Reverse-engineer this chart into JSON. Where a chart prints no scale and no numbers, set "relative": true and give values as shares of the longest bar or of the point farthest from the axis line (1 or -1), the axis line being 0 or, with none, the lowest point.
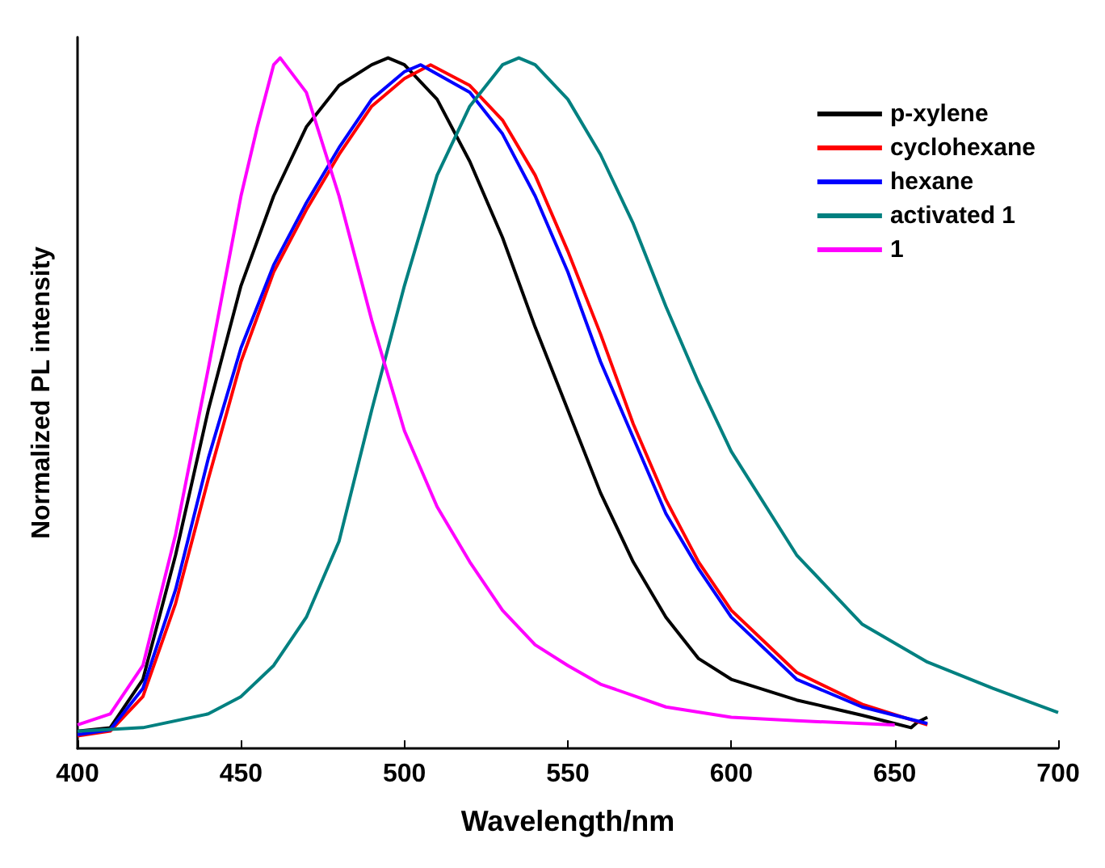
{
  "chart_data": {
    "type": "line",
    "relative": true,
    "xlabel": "Wavelength/nm",
    "ylabel": "Normalized PL intensity",
    "xlim": [
      400,
      700
    ],
    "xticks": [
      400,
      450,
      500,
      550,
      600,
      650,
      700
    ],
    "legend": "top right",
    "marker": "none",
    "line_style": "solid",
    "grid": false,
    "series": [
      {
        "name": "p-xylene",
        "color": "#000000",
        "x": [
          400,
          410,
          420,
          430,
          440,
          450,
          460,
          470,
          480,
          490,
          495,
          500,
          510,
          520,
          530,
          540,
          550,
          560,
          570,
          580,
          590,
          600,
          620,
          640,
          650,
          655,
          657,
          660
        ],
        "values": [
          0.025,
          0.03,
          0.1,
          0.28,
          0.49,
          0.67,
          0.8,
          0.9,
          0.96,
          0.99,
          1,
          0.99,
          0.94,
          0.85,
          0.74,
          0.61,
          0.49,
          0.37,
          0.27,
          0.19,
          0.13,
          0.1,
          0.07,
          0.048,
          0.036,
          0.03,
          0.038,
          0.045
        ]
      },
      {
        "name": "cyclohexane",
        "color": "#ff0000",
        "x": [
          400,
          410,
          420,
          430,
          440,
          450,
          460,
          470,
          480,
          490,
          500,
          508,
          520,
          530,
          540,
          550,
          560,
          570,
          580,
          590,
          600,
          620,
          640,
          660
        ],
        "values": [
          0.018,
          0.025,
          0.075,
          0.21,
          0.39,
          0.56,
          0.69,
          0.78,
          0.86,
          0.93,
          0.97,
          0.99,
          0.96,
          0.91,
          0.83,
          0.72,
          0.6,
          0.47,
          0.36,
          0.27,
          0.2,
          0.11,
          0.064,
          0.034
        ]
      },
      {
        "name": "hexane",
        "color": "#0000ff",
        "x": [
          400,
          410,
          420,
          430,
          440,
          450,
          460,
          470,
          480,
          490,
          500,
          505,
          520,
          530,
          540,
          550,
          560,
          570,
          580,
          590,
          600,
          620,
          640,
          660
        ],
        "values": [
          0.02,
          0.027,
          0.087,
          0.23,
          0.42,
          0.58,
          0.7,
          0.79,
          0.87,
          0.94,
          0.98,
          0.99,
          0.95,
          0.89,
          0.8,
          0.69,
          0.56,
          0.45,
          0.34,
          0.26,
          0.19,
          0.1,
          0.06,
          0.036
        ]
      },
      {
        "name": "activated 1",
        "color": "#008080",
        "x": [
          400,
          420,
          440,
          450,
          460,
          470,
          480,
          490,
          500,
          510,
          520,
          530,
          535,
          540,
          550,
          560,
          570,
          580,
          590,
          600,
          620,
          640,
          660,
          680,
          700
        ],
        "values": [
          0.025,
          0.03,
          0.05,
          0.075,
          0.12,
          0.19,
          0.3,
          0.49,
          0.67,
          0.83,
          0.93,
          0.99,
          1,
          0.99,
          0.94,
          0.86,
          0.76,
          0.64,
          0.53,
          0.43,
          0.28,
          0.18,
          0.125,
          0.087,
          0.052
        ]
      },
      {
        "name": "1",
        "color": "#ff00ff",
        "x": [
          400,
          410,
          420,
          430,
          440,
          450,
          455,
          460,
          462,
          470,
          480,
          490,
          500,
          510,
          520,
          530,
          540,
          550,
          560,
          580,
          600,
          620,
          650
        ],
        "values": [
          0.034,
          0.05,
          0.12,
          0.31,
          0.55,
          0.8,
          0.9,
          0.99,
          1,
          0.95,
          0.8,
          0.62,
          0.46,
          0.35,
          0.27,
          0.2,
          0.15,
          0.12,
          0.093,
          0.06,
          0.045,
          0.04,
          0.034
        ]
      }
    ]
  }
}
